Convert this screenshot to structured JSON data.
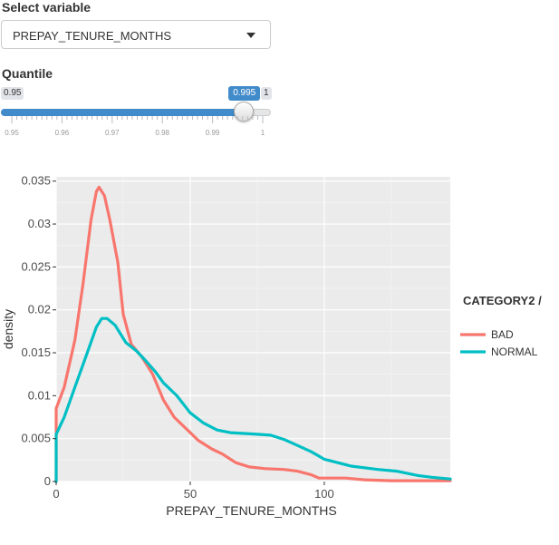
{
  "controls": {
    "select_label": "Select variable",
    "select_value": "PREPAY_TENURE_MONTHS",
    "quantile_label": "Quantile",
    "slider": {
      "min_label": "0.95",
      "max_label": "1",
      "value_label": "0.995",
      "min": 0.95,
      "max": 1,
      "value": 0.995,
      "tick_labels": [
        "0.95",
        "0.96",
        "0.97",
        "0.98",
        "0.99",
        "1"
      ]
    },
    "accent_color": "#428bca"
  },
  "chart_data": {
    "type": "line",
    "xlabel": "PREPAY_TENURE_MONTHS",
    "ylabel": "density",
    "xlim": [
      0,
      147
    ],
    "ylim": [
      0,
      0.0355
    ],
    "x_ticks": [
      0,
      50,
      100
    ],
    "y_ticks": [
      0,
      0.005,
      0.01,
      0.015,
      0.02,
      0.025,
      0.03,
      0.035
    ],
    "x_tick_labels": [
      "0",
      "50",
      "100"
    ],
    "y_tick_labels": [
      "0",
      "0.005",
      "0.01",
      "0.015",
      "0.02",
      "0.025",
      "0.03",
      "0.035"
    ],
    "grid": true,
    "legend_title": "CATEGORY2 /",
    "legend_position": "right",
    "series": [
      {
        "name": "BAD",
        "color": "#f8766d",
        "points": [
          [
            0,
            0
          ],
          [
            0,
            0.0085
          ],
          [
            3,
            0.011
          ],
          [
            7,
            0.0165
          ],
          [
            10,
            0.023
          ],
          [
            13,
            0.0305
          ],
          [
            15,
            0.0338
          ],
          [
            16,
            0.0343
          ],
          [
            18,
            0.0333
          ],
          [
            20,
            0.0305
          ],
          [
            23,
            0.0255
          ],
          [
            25,
            0.0195
          ],
          [
            28,
            0.016
          ],
          [
            32,
            0.0145
          ],
          [
            36,
            0.0125
          ],
          [
            40,
            0.0095
          ],
          [
            44,
            0.0075
          ],
          [
            49,
            0.006
          ],
          [
            53,
            0.0048
          ],
          [
            58,
            0.0038
          ],
          [
            62,
            0.0032
          ],
          [
            67,
            0.0022
          ],
          [
            72,
            0.0017
          ],
          [
            78,
            0.0015
          ],
          [
            85,
            0.0014
          ],
          [
            90,
            0.0012
          ],
          [
            95,
            0.0008
          ],
          [
            98,
            0.0004
          ],
          [
            103,
            0.0004
          ],
          [
            108,
            0.0004
          ],
          [
            115,
            0.0002
          ],
          [
            125,
            0.0001
          ],
          [
            135,
            0.0001
          ],
          [
            147,
            0.0001
          ]
        ]
      },
      {
        "name": "NORMAL",
        "color": "#00bfc4",
        "points": [
          [
            0,
            0
          ],
          [
            0,
            0.0055
          ],
          [
            3,
            0.0075
          ],
          [
            7,
            0.011
          ],
          [
            11,
            0.0145
          ],
          [
            15,
            0.018
          ],
          [
            17,
            0.019
          ],
          [
            19,
            0.019
          ],
          [
            22,
            0.0182
          ],
          [
            26,
            0.0162
          ],
          [
            30,
            0.0152
          ],
          [
            33,
            0.0142
          ],
          [
            37,
            0.0128
          ],
          [
            40,
            0.0115
          ],
          [
            45,
            0.01
          ],
          [
            50,
            0.008
          ],
          [
            55,
            0.0068
          ],
          [
            60,
            0.006
          ],
          [
            65,
            0.0057
          ],
          [
            70,
            0.0056
          ],
          [
            75,
            0.0055
          ],
          [
            80,
            0.0054
          ],
          [
            85,
            0.0049
          ],
          [
            90,
            0.0042
          ],
          [
            95,
            0.0035
          ],
          [
            100,
            0.0026
          ],
          [
            105,
            0.0022
          ],
          [
            110,
            0.0018
          ],
          [
            120,
            0.0014
          ],
          [
            127,
            0.0012
          ],
          [
            135,
            0.0007
          ],
          [
            140,
            0.0005
          ],
          [
            147,
            0.0003
          ]
        ]
      }
    ]
  }
}
